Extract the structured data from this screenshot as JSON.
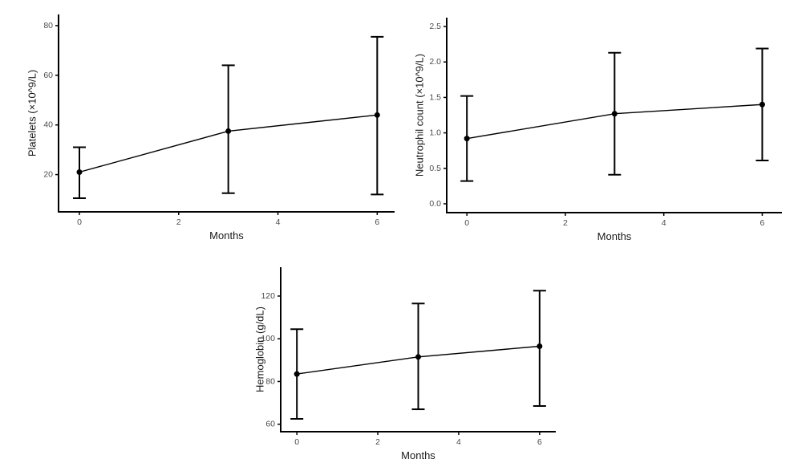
{
  "figure": {
    "background": "#ffffff",
    "palette": {
      "axis_line": "#000000",
      "tick_label": "#4d4d4d",
      "axis_title": "#1a1a1a",
      "series": "#000000"
    }
  },
  "chart_data": [
    {
      "id": "platelets",
      "type": "line",
      "title": "",
      "xlabel": "Months",
      "ylabel": "Platelets (×10^9/L)",
      "x": [
        0,
        3,
        6
      ],
      "series": [
        {
          "name": "mean-with-error-bars",
          "values": [
            21,
            37.5,
            44
          ],
          "lower": [
            10.5,
            12.5,
            12
          ],
          "upper": [
            31,
            64,
            75.5
          ]
        }
      ],
      "xticks": [
        0,
        2,
        4,
        6
      ],
      "xtick_labels": [
        "0",
        "2",
        "4",
        "6"
      ],
      "yticks": [
        20,
        40,
        60,
        80
      ],
      "ytick_labels": [
        "20",
        "40",
        "60",
        "80"
      ],
      "xlim": [
        -0.42,
        6.35
      ],
      "ylim": [
        5,
        84.5
      ],
      "grid": false,
      "legend": "none",
      "error_bars": true
    },
    {
      "id": "neutrophil-count",
      "type": "line",
      "title": "",
      "xlabel": "Months",
      "ylabel": "Neutrophil count (×10^9/L)",
      "x": [
        0,
        3,
        6
      ],
      "series": [
        {
          "name": "mean-with-error-bars",
          "values": [
            0.92,
            1.27,
            1.4
          ],
          "lower": [
            0.32,
            0.41,
            0.61
          ],
          "upper": [
            1.52,
            2.13,
            2.19
          ]
        }
      ],
      "xticks": [
        0,
        2,
        4,
        6
      ],
      "xtick_labels": [
        "0",
        "2",
        "4",
        "6"
      ],
      "yticks": [
        0,
        0.5,
        1,
        1.5,
        2,
        2.5
      ],
      "ytick_labels": [
        "0.0",
        "0.5",
        "1.0",
        "1.5",
        "2.0",
        "2.5"
      ],
      "xlim": [
        -0.41,
        6.4
      ],
      "ylim": [
        -0.125,
        2.625
      ],
      "grid": false,
      "legend": "none",
      "error_bars": true
    },
    {
      "id": "hemoglobin",
      "type": "line",
      "title": "",
      "xlabel": "Months",
      "ylabel": "Hemoglobin (g/dL)",
      "x": [
        0,
        3,
        6
      ],
      "series": [
        {
          "name": "mean-with-error-bars",
          "values": [
            83.5,
            91.5,
            96.5
          ],
          "lower": [
            62.5,
            67,
            68.5
          ],
          "upper": [
            104.5,
            116.5,
            122.5
          ]
        }
      ],
      "xticks": [
        0,
        2,
        4,
        6
      ],
      "xtick_labels": [
        "0",
        "2",
        "4",
        "6"
      ],
      "yticks": [
        60,
        80,
        100,
        120
      ],
      "ytick_labels": [
        "60",
        "80",
        "100",
        "120"
      ],
      "xlim": [
        -0.4,
        6.4
      ],
      "ylim": [
        56.5,
        133.5
      ],
      "grid": false,
      "legend": "none",
      "error_bars": true
    }
  ]
}
